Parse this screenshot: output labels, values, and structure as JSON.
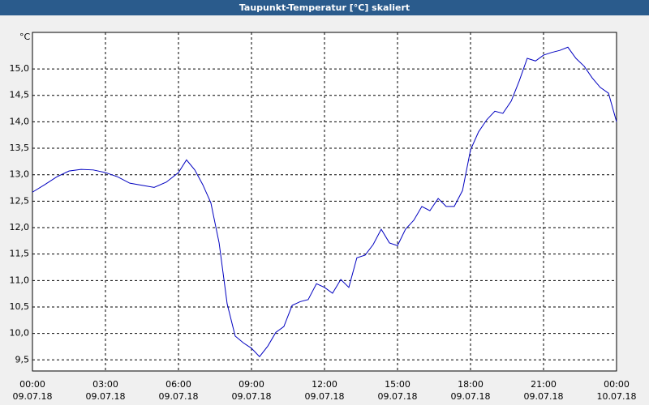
{
  "chart_data": {
    "type": "line",
    "title": "Taupunkt-Temperatur [°C] skaliert",
    "y_unit": "°C",
    "x": [
      0,
      0.5,
      1,
      1.5,
      2,
      2.5,
      3,
      3.5,
      4,
      4.5,
      5,
      5.5,
      6,
      6.33,
      6.67,
      7,
      7.33,
      7.67,
      8,
      8.33,
      8.67,
      9,
      9.33,
      9.67,
      10,
      10.33,
      10.67,
      11,
      11.33,
      11.67,
      12,
      12.33,
      12.67,
      13,
      13.33,
      13.67,
      14,
      14.33,
      14.67,
      15,
      15.33,
      15.67,
      16,
      16.33,
      16.67,
      17,
      17.33,
      17.67,
      18,
      18.33,
      18.67,
      19,
      19.33,
      19.67,
      20,
      20.33,
      20.67,
      21,
      21.33,
      21.67,
      22,
      22.33,
      22.67,
      23,
      23.33,
      23.67,
      24
    ],
    "series": [
      {
        "name": "Taupunkt",
        "color": "#0000c0",
        "values": [
          12.67,
          12.81,
          12.96,
          13.07,
          13.1,
          13.09,
          13.04,
          12.96,
          12.84,
          12.8,
          12.76,
          12.86,
          13.04,
          13.28,
          13.09,
          12.81,
          12.47,
          11.71,
          10.56,
          9.95,
          9.82,
          9.72,
          9.56,
          9.76,
          10.02,
          10.13,
          10.53,
          10.6,
          10.64,
          10.94,
          10.87,
          10.76,
          11.02,
          10.87,
          11.43,
          11.48,
          11.68,
          11.97,
          11.71,
          11.66,
          11.97,
          12.14,
          12.4,
          12.32,
          12.55,
          12.4,
          12.4,
          12.7,
          13.47,
          13.81,
          14.04,
          14.2,
          14.16,
          14.39,
          14.77,
          15.2,
          15.15,
          15.26,
          15.31,
          15.35,
          15.41,
          15.2,
          15.05,
          14.83,
          14.65,
          14.54,
          14.0
        ]
      }
    ],
    "xlim": [
      0,
      24
    ],
    "ylim": [
      9.29,
      15.69
    ],
    "xticks": [
      {
        "value": 0,
        "label": "00:00"
      },
      {
        "value": 3,
        "label": "03:00"
      },
      {
        "value": 6,
        "label": "06:00"
      },
      {
        "value": 9,
        "label": "09:00"
      },
      {
        "value": 12,
        "label": "12:00"
      },
      {
        "value": 15,
        "label": "15:00"
      },
      {
        "value": 18,
        "label": "18:00"
      },
      {
        "value": 21,
        "label": "21:00"
      },
      {
        "value": 24,
        "label": "00:00"
      }
    ],
    "xtick_dates": [
      "09.07.18",
      "09.07.18",
      "09.07.18",
      "09.07.18",
      "09.07.18",
      "09.07.18",
      "09.07.18",
      "09.07.18",
      "10.07.18"
    ],
    "yticks": [
      {
        "value": 9.5,
        "label": "9,5"
      },
      {
        "value": 10,
        "label": "10,0"
      },
      {
        "value": 10.5,
        "label": "10,5"
      },
      {
        "value": 11,
        "label": "11,0"
      },
      {
        "value": 11.5,
        "label": "11,5"
      },
      {
        "value": 12,
        "label": "12,0"
      },
      {
        "value": 12.5,
        "label": "12,5"
      },
      {
        "value": 13,
        "label": "13,0"
      },
      {
        "value": 13.5,
        "label": "13,5"
      },
      {
        "value": 14,
        "label": "14,0"
      },
      {
        "value": 14.5,
        "label": "14,5"
      },
      {
        "value": 15,
        "label": "15,0"
      }
    ],
    "grid": true
  }
}
